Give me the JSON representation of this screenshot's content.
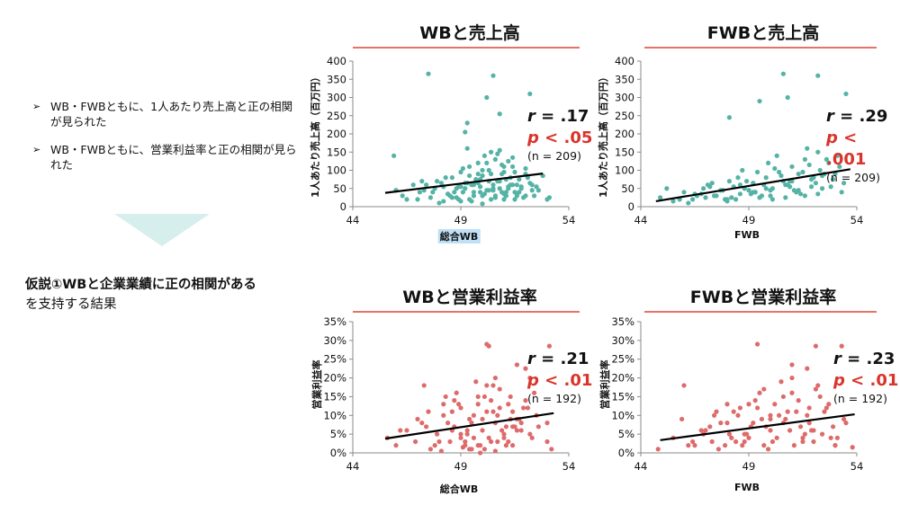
{
  "bullets": [
    "WB・FWBともに、1人あたり売上高と正の相関が見られた",
    "WB・FWBともに、営業利益率と正の相関が見られた"
  ],
  "bullet_marker": "➢",
  "hypothesis": {
    "line1": "仮説①WBと企業業績に正の相関がある",
    "line2": "を支持する結果"
  },
  "colors": {
    "teal": "#55b3a6",
    "red_points": "#de6b6b",
    "accent_red": "#d9342b",
    "rule": "#e57368",
    "arrow": "#d6efed"
  },
  "panels": [
    {
      "title": "WBと売上高",
      "ylabel": "1人あたり売上高（百万円）",
      "xlabel": "総合WB",
      "xlabel_highlight": true,
      "stat_r": ".17",
      "stat_p": "< .05",
      "stat_n": "(n = 209)"
    },
    {
      "title": "FWBと売上高",
      "ylabel": "1人あたり売上高（百万円）",
      "xlabel": "FWB",
      "xlabel_highlight": false,
      "stat_r": ".29",
      "stat_p": "< .001",
      "stat_n": "(n = 209)"
    },
    {
      "title": "WBと営業利益率",
      "ylabel": "営業利益率",
      "xlabel": "総合WB",
      "xlabel_highlight": false,
      "stat_r": ".21",
      "stat_p": "< .01",
      "stat_n": "(n = 192)"
    },
    {
      "title": "FWBと営業利益率",
      "ylabel": "営業利益率",
      "xlabel": "FWB",
      "xlabel_highlight": false,
      "stat_r": ".23",
      "stat_p": "< .01",
      "stat_n": "(n = 192)"
    }
  ],
  "chart_data": [
    {
      "type": "scatter",
      "title": "WBと売上高",
      "xlabel": "総合WB",
      "ylabel": "1人あたり売上高（百万円）",
      "xlim": [
        44,
        54
      ],
      "ylim": [
        0,
        400
      ],
      "xticks": [
        "44",
        "49",
        "54"
      ],
      "yticks": [
        "0",
        "50",
        "100",
        "150",
        "200",
        "250",
        "300",
        "350",
        "400"
      ],
      "trendline": {
        "x": [
          45.5,
          52.8
        ],
        "y": [
          38,
          91
        ]
      },
      "points": {
        "x": [
          47.5,
          50.5,
          50.2,
          52.2,
          49.3,
          50.8,
          49.2,
          45.9,
          47.1,
          46.3,
          46.8,
          47.3,
          47.6,
          47.9,
          48.2,
          48.4,
          48.6,
          48.8,
          49.0,
          49.1,
          49.3,
          49.4,
          49.6,
          49.7,
          49.8,
          49.9,
          50.0,
          50.1,
          50.2,
          50.3,
          50.4,
          50.5,
          50.6,
          50.7,
          50.8,
          50.9,
          51.0,
          51.1,
          51.2,
          51.3,
          51.4,
          51.5,
          51.6,
          51.7,
          51.8,
          52.0,
          52.2,
          52.4,
          52.6,
          52.8,
          48.9,
          49.2,
          49.5,
          49.8,
          50.0,
          50.3,
          50.6,
          50.9,
          51.2,
          51.5,
          48.0,
          48.5,
          49.0,
          49.5,
          50.0,
          50.5,
          51.0,
          51.5,
          52.0,
          47.0,
          47.8,
          48.3,
          48.7,
          49.1,
          49.6,
          50.1,
          50.4,
          50.8,
          51.1,
          51.4,
          51.9,
          52.3,
          53.0,
          46.0,
          46.5,
          47.2,
          47.7,
          48.1,
          48.6,
          49.0,
          49.4,
          49.9,
          50.2,
          50.6,
          51.0,
          51.3,
          51.7,
          52.1,
          52.5,
          49.3,
          49.7,
          50.0,
          50.3,
          50.7,
          51.0,
          51.4,
          48.8,
          49.2,
          49.6,
          50.0,
          50.4,
          50.8,
          51.2,
          51.6,
          52.0,
          48.4,
          48.9,
          49.4,
          49.9,
          50.5,
          51.1,
          51.6,
          52.3,
          53.1,
          47.4,
          48.2,
          49.8,
          50.9,
          51.8
        ],
        "y": [
          365,
          360,
          300,
          310,
          230,
          255,
          205,
          140,
          40,
          30,
          60,
          45,
          25,
          70,
          55,
          35,
          80,
          50,
          95,
          40,
          65,
          110,
          30,
          75,
          120,
          55,
          85,
          140,
          45,
          100,
          150,
          60,
          130,
          70,
          155,
          90,
          110,
          40,
          125,
          80,
          60,
          95,
          35,
          75,
          50,
          105,
          65,
          30,
          45,
          85,
          20,
          50,
          15,
          90,
          30,
          70,
          25,
          115,
          55,
          20,
          10,
          30,
          15,
          60,
          8,
          45,
          20,
          40,
          30,
          20,
          50,
          80,
          40,
          105,
          60,
          35,
          90,
          50,
          75,
          135,
          25,
          60,
          20,
          45,
          20,
          70,
          40,
          65,
          25,
          55,
          85,
          40,
          120,
          30,
          95,
          60,
          40,
          80,
          55,
          160,
          70,
          100,
          45,
          145,
          35,
          110,
          25,
          65,
          40,
          85,
          20,
          70,
          50,
          30,
          90,
          35,
          55,
          20,
          75,
          50,
          30,
          60,
          45,
          25,
          60,
          15,
          65,
          40,
          55
        ]
      }
    },
    {
      "type": "scatter",
      "title": "FWBと売上高",
      "xlabel": "FWB",
      "ylabel": "1人あたり売上高（百万円）",
      "xlim": [
        44,
        54
      ],
      "ylim": [
        0,
        400
      ],
      "xticks": [
        "44",
        "49",
        "54"
      ],
      "yticks": [
        "0",
        "50",
        "100",
        "150",
        "200",
        "250",
        "300",
        "350",
        "400"
      ],
      "trendline": {
        "x": [
          44.7,
          53.7
        ],
        "y": [
          15,
          103
        ]
      },
      "points": {
        "x": [
          50.6,
          52.2,
          50.8,
          53.5,
          49.5,
          48.1,
          44.9,
          45.2,
          45.5,
          46.0,
          46.4,
          46.8,
          47.1,
          47.4,
          47.7,
          48.0,
          48.3,
          48.6,
          48.9,
          49.2,
          49.5,
          49.8,
          50.1,
          50.4,
          50.7,
          51.0,
          51.3,
          51.6,
          51.9,
          52.2,
          52.5,
          52.8,
          53.1,
          53.4,
          46.2,
          46.9,
          47.5,
          48.1,
          48.7,
          49.3,
          49.9,
          50.5,
          51.1,
          51.7,
          52.3,
          52.9,
          47.0,
          47.8,
          48.5,
          49.1,
          49.7,
          50.3,
          50.9,
          51.5,
          52.1,
          52.7,
          53.3,
          45.8,
          46.6,
          47.3,
          48.0,
          48.8,
          49.4,
          50.0,
          50.6,
          51.2,
          51.8,
          52.4,
          53.0,
          49.0,
          49.6,
          50.2,
          50.8,
          51.4,
          52.0,
          48.4,
          49.2,
          50.0,
          50.7,
          51.3,
          51.9,
          52.6,
          46.5,
          47.2,
          47.9,
          48.6,
          49.3,
          50.1,
          50.9,
          51.6,
          52.4,
          53.2,
          48.2,
          49.8,
          51.0,
          52.2
        ],
        "y": [
          365,
          360,
          300,
          310,
          290,
          245,
          25,
          50,
          15,
          40,
          20,
          35,
          60,
          30,
          45,
          20,
          55,
          35,
          70,
          40,
          25,
          80,
          50,
          95,
          60,
          110,
          45,
          130,
          75,
          150,
          90,
          55,
          140,
          65,
          10,
          50,
          30,
          70,
          100,
          40,
          120,
          85,
          45,
          160,
          100,
          75,
          25,
          45,
          80,
          35,
          60,
          140,
          55,
          95,
          65,
          120,
          40,
          20,
          30,
          65,
          15,
          50,
          95,
          30,
          70,
          40,
          115,
          50,
          90,
          45,
          30,
          105,
          60,
          35,
          80,
          20,
          65,
          45,
          25,
          90,
          55,
          130,
          35,
          55,
          20,
          60,
          40,
          20,
          70,
          30,
          85,
          110,
          25,
          50,
          70,
          35
        ]
      }
    },
    {
      "type": "scatter",
      "title": "WBと営業利益率",
      "xlabel": "総合WB",
      "ylabel": "営業利益率",
      "xlim": [
        44,
        54
      ],
      "ylim": [
        0,
        35
      ],
      "xticks": [
        "44",
        "49",
        "54"
      ],
      "yticks": [
        "0%",
        "5%",
        "10%",
        "15%",
        "20%",
        "25%",
        "30%",
        "35%"
      ],
      "trendline": {
        "x": [
          45.5,
          53.3
        ],
        "y": [
          3.8,
          10.6
        ]
      },
      "points": {
        "x": [
          50.2,
          50.3,
          53.1,
          47.3,
          51.6,
          52.0,
          52.2,
          45.6,
          46.0,
          46.5,
          46.9,
          47.2,
          47.6,
          47.9,
          48.2,
          48.5,
          48.7,
          49.0,
          49.2,
          49.4,
          49.6,
          49.8,
          50.0,
          50.2,
          50.4,
          50.6,
          50.8,
          51.0,
          51.2,
          51.4,
          51.6,
          51.8,
          52.0,
          52.3,
          52.6,
          53.0,
          48.1,
          48.6,
          49.1,
          49.5,
          49.9,
          50.3,
          50.7,
          51.1,
          51.5,
          51.9,
          48.4,
          48.9,
          49.3,
          49.7,
          50.1,
          50.5,
          50.9,
          51.3,
          51.7,
          47.5,
          48.0,
          48.8,
          49.6,
          50.4,
          51.2,
          52.1,
          53.2,
          46.2,
          47.0,
          47.8,
          48.6,
          49.4,
          50.2,
          51.0,
          51.8,
          52.5,
          49.0,
          49.8,
          50.6,
          51.4,
          48.3,
          49.2,
          50.0,
          50.8,
          51.6,
          52.4,
          47.4,
          48.2,
          49.0,
          49.8,
          50.6,
          51.4,
          52.2,
          53.0,
          49.5,
          50.1,
          50.7,
          51.3,
          48.7,
          49.3,
          49.9,
          50.5,
          51.1
        ],
        "y": [
          29,
          28.5,
          28.5,
          18,
          23.5,
          22.5,
          20,
          4,
          2,
          6,
          3,
          8,
          1,
          5,
          10,
          3,
          7,
          12,
          2,
          9,
          4,
          15,
          6,
          11,
          3,
          8,
          17,
          5,
          13,
          2,
          9,
          6,
          14,
          4,
          7,
          3,
          0.5,
          6,
          1.5,
          8,
          0,
          4,
          10,
          2,
          7,
          12,
          8,
          13,
          5,
          19,
          1,
          11,
          6,
          15,
          9,
          11,
          3,
          16,
          10,
          14,
          3,
          12,
          1,
          6,
          9,
          2,
          11,
          1,
          18,
          4,
          8,
          10,
          5,
          13,
          0.5,
          7,
          15,
          3,
          9,
          12,
          6,
          16,
          7,
          13,
          4,
          2,
          20,
          11,
          5,
          8,
          1,
          15,
          3,
          9,
          14,
          6,
          2,
          18,
          7
        ]
      }
    },
    {
      "type": "scatter",
      "title": "FWBと営業利益率",
      "xlabel": "FWB",
      "ylabel": "営業利益率",
      "xlim": [
        44,
        54
      ],
      "ylim": [
        0,
        35
      ],
      "xticks": [
        "44",
        "49",
        "54"
      ],
      "yticks": [
        "0%",
        "5%",
        "10%",
        "15%",
        "20%",
        "25%",
        "30%",
        "35%"
      ],
      "trendline": {
        "x": [
          44.9,
          53.9
        ],
        "y": [
          3.4,
          10.3
        ]
      },
      "points": {
        "x": [
          49.4,
          52.1,
          53.3,
          46.0,
          51.0,
          51.7,
          44.8,
          45.5,
          46.2,
          46.8,
          47.3,
          47.7,
          48.1,
          48.5,
          48.8,
          49.1,
          49.4,
          49.7,
          50.0,
          50.3,
          50.6,
          50.9,
          51.2,
          51.5,
          51.8,
          52.1,
          52.4,
          52.7,
          53.0,
          53.4,
          53.8,
          47.0,
          47.6,
          48.3,
          48.9,
          49.5,
          50.1,
          50.7,
          51.3,
          51.9,
          52.5,
          53.1,
          46.5,
          47.4,
          48.2,
          49.0,
          49.8,
          50.5,
          51.1,
          51.7,
          52.3,
          52.9,
          48.0,
          48.7,
          49.3,
          50.0,
          50.8,
          51.5,
          52.2,
          45.9,
          46.9,
          47.9,
          48.6,
          49.2,
          49.9,
          50.4,
          51.0,
          51.6,
          52.6,
          53.5,
          48.4,
          49.6,
          50.2,
          51.4,
          52.0,
          47.2,
          48.0,
          49.0,
          50.0,
          51.0,
          52.0,
          53.0,
          46.4,
          47.5,
          48.8,
          49.7,
          50.6,
          51.8,
          52.8
        ],
        "y": [
          29,
          28.5,
          28.5,
          18,
          23.5,
          22.5,
          1,
          4,
          2,
          6,
          3,
          8,
          5,
          10,
          3,
          7,
          12,
          2,
          9,
          4,
          15,
          6,
          11,
          3,
          8,
          17,
          5,
          13,
          2,
          9,
          1.5,
          6,
          1,
          11,
          5,
          16,
          3,
          9,
          14,
          6,
          11,
          4,
          2,
          10,
          4,
          13,
          7,
          19,
          2,
          10,
          15,
          7,
          8,
          2,
          14,
          6,
          11,
          4,
          18,
          9,
          5,
          2,
          12,
          8,
          1,
          10,
          20,
          5,
          12,
          8,
          3,
          9,
          13,
          7,
          3,
          7,
          13,
          4,
          10,
          16,
          6,
          2,
          3,
          11,
          5,
          17,
          8,
          12,
          4
        ]
      }
    }
  ]
}
